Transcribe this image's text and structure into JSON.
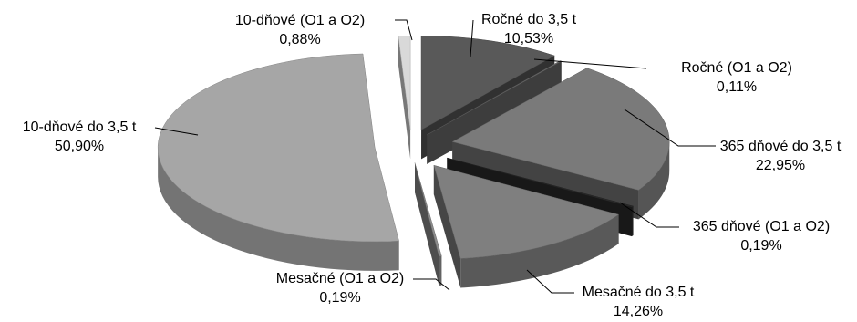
{
  "chart_data": {
    "type": "pie",
    "style": "3d-exploded",
    "title": "",
    "slices": [
      {
        "label": "Ročné do 3,5 t",
        "value": 10.53,
        "display": "10,53%",
        "color": "#595959"
      },
      {
        "label": "Ročné (O1 a O2)",
        "value": 0.11,
        "display": "0,11%",
        "color": "#6e6e6e"
      },
      {
        "label": "365 dňové do 3,5 t",
        "value": 22.95,
        "display": "22,95%",
        "color": "#7a7a7a"
      },
      {
        "label": "365 dňové (O1 a O2)",
        "value": 0.19,
        "display": "0,19%",
        "color": "#2b2b2b"
      },
      {
        "label": "Mesačné do 3,5 t",
        "value": 14.26,
        "display": "14,26%",
        "color": "#7f7f7f"
      },
      {
        "label": "Mesačné (O1 a O2)",
        "value": 0.19,
        "display": "0,19%",
        "color": "#8c8c8c"
      },
      {
        "label": "10-dňové do 3,5 t",
        "value": 50.9,
        "display": "50,90%",
        "color": "#a6a6a6"
      },
      {
        "label": "10-dňové (O1 a O2)",
        "value": 0.88,
        "display": "0,88%",
        "color": "#d9d9d9"
      }
    ]
  }
}
